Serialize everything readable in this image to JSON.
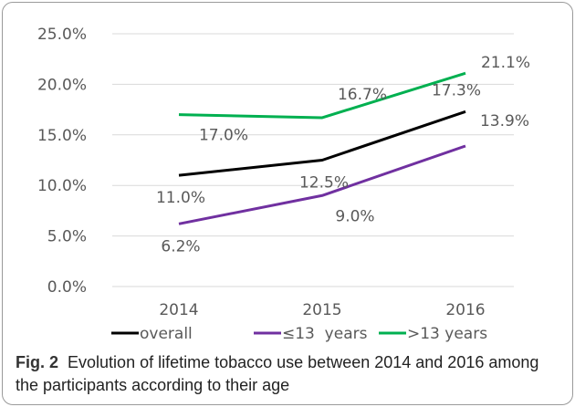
{
  "chart_data": {
    "type": "line",
    "categories": [
      "2014",
      "2015",
      "2016"
    ],
    "series": [
      {
        "name": "overall",
        "values": [
          11.0,
          12.5,
          17.3
        ],
        "labels": [
          "11.0%",
          "12.5%",
          "17.3%"
        ],
        "color": "#000000"
      },
      {
        "name": "≤13  years",
        "values": [
          6.2,
          9.0,
          13.9
        ],
        "labels": [
          "6.2%",
          "9.0%",
          "13.9%"
        ],
        "color": "#7030a0"
      },
      {
        "name": ">13 years",
        "values": [
          17.0,
          16.7,
          21.1
        ],
        "labels": [
          "17.0%",
          "16.7%",
          "21.1%"
        ],
        "color": "#00b050"
      }
    ],
    "ylim": [
      0,
      25
    ],
    "yticks": [
      0,
      5,
      10,
      15,
      20,
      25
    ],
    "ytick_labels": [
      "0.0%",
      "5.0%",
      "10.0%",
      "15.0%",
      "20.0%",
      "25.0%"
    ],
    "grid": true,
    "legend": "bottom"
  },
  "caption": {
    "label": "Fig. 2",
    "text": "Evolution of lifetime tobacco use between 2014 and 2016 among the participants according to their age"
  }
}
